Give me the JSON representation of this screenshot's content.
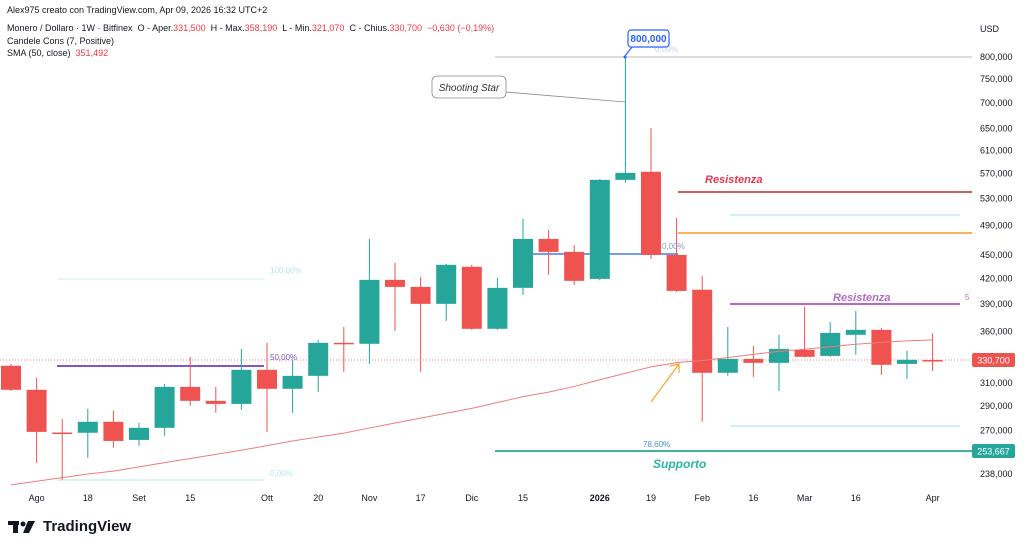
{
  "header": {
    "credit": "Alex975 creato con TradingView.com, Apr 09, 2026 16:32 UTC+2",
    "symbol": "Monero / Dollaro · 1W · Bitfinex",
    "open_label": "O - Aper.",
    "open": "331,500",
    "high_label": "H - Max.",
    "high": "358,190",
    "low_label": "L - Min.",
    "low": "321,070",
    "close_label": "C - Chius.",
    "close": "330,700",
    "change": "−0,630 (−0,19%)",
    "indicator1": "Candele Cons (7, Positive)",
    "indicator2": "SMA (50, close)",
    "indicator2_value": "351,492"
  },
  "logo": {
    "text": "TradingView",
    "icon": "tradingview-logo-icon"
  },
  "colors": {
    "up": "#26a69a",
    "down": "#ef5350",
    "sma": "#f06b6b",
    "accent": "#2962ff"
  },
  "chart_data": {
    "type": "candlestick",
    "currency": "USD",
    "y_scale": "log",
    "ylim": [
      238,
      800
    ],
    "y_ticks": [
      "800,000",
      "750,000",
      "700,000",
      "650,000",
      "610,000",
      "570,000",
      "530,000",
      "490,000",
      "450,000",
      "420,000",
      "390,000",
      "360,000",
      "310,000",
      "290,000",
      "270,000",
      "238,000"
    ],
    "y_tick_values": [
      800,
      750,
      700,
      650,
      610,
      570,
      530,
      490,
      450,
      420,
      390,
      360,
      310,
      290,
      270,
      238
    ],
    "x_ticks": [
      {
        "label": "Ago",
        "candle": 2
      },
      {
        "label": "18",
        "candle": 4
      },
      {
        "label": "Set",
        "candle": 6
      },
      {
        "label": "15",
        "candle": 8
      },
      {
        "label": "Ott",
        "candle": 11
      },
      {
        "label": "20",
        "candle": 13
      },
      {
        "label": "Nov",
        "candle": 15
      },
      {
        "label": "17",
        "candle": 17
      },
      {
        "label": "Dic",
        "candle": 19
      },
      {
        "label": "15",
        "candle": 21
      },
      {
        "label": "2026",
        "candle": 24,
        "bold": true
      },
      {
        "label": "19",
        "candle": 26
      },
      {
        "label": "Feb",
        "candle": 28
      },
      {
        "label": "16",
        "candle": 30
      },
      {
        "label": "Mar",
        "candle": 32
      },
      {
        "label": "16",
        "candle": 34
      },
      {
        "label": "Apr",
        "candle": 37
      }
    ],
    "candles": [
      [
        326,
        327.8,
        303,
        304
      ],
      [
        304,
        314.8,
        245.8,
        269
      ],
      [
        268.5,
        279.4,
        234,
        268
      ],
      [
        268.3,
        287.6,
        249.5,
        277
      ],
      [
        277,
        286,
        256.8,
        262
      ],
      [
        262.8,
        276.1,
        258.3,
        272.2
      ],
      [
        272.2,
        309.3,
        265.9,
        306.6
      ],
      [
        306.6,
        334.6,
        290.1,
        294.4
      ],
      [
        294.4,
        306.6,
        284.3,
        291.8
      ],
      [
        291.8,
        342.4,
        286.8,
        322.2
      ],
      [
        322.2,
        348.5,
        269,
        304.9
      ],
      [
        304.9,
        331.7,
        284.3,
        316.6
      ],
      [
        316.6,
        351.5,
        302.2,
        348.5
      ],
      [
        348.5,
        365,
        320.3,
        347.5
      ],
      [
        347.5,
        471.4,
        327.8,
        418.5
      ],
      [
        418.5,
        439.7,
        360.8,
        410
      ],
      [
        410,
        422.2,
        320.3,
        390.3
      ],
      [
        390.3,
        438.5,
        371.5,
        437.2
      ],
      [
        434.7,
        437.2,
        361.9,
        363
      ],
      [
        363,
        421,
        361.9,
        408.9
      ],
      [
        408.9,
        499.7,
        400.7,
        471.4
      ],
      [
        471.4,
        484,
        424.6,
        454
      ],
      [
        454,
        463.3,
        412.4,
        417.3
      ],
      [
        419.7,
        561,
        418,
        559.7
      ],
      [
        559.7,
        800,
        554.9,
        571.2
      ],
      [
        573,
        651,
        444.8,
        450
      ],
      [
        450,
        501.2,
        404,
        405.3
      ],
      [
        406.7,
        423.4,
        277,
        319.4
      ],
      [
        319.4,
        365,
        316.6,
        332.6
      ],
      [
        332.6,
        345.5,
        315.7,
        328.8
      ],
      [
        328.8,
        356.7,
        303,
        342.4
      ],
      [
        341.4,
        386.9,
        334,
        334.6
      ],
      [
        335.5,
        370.4,
        334.6,
        358.7
      ],
      [
        356.7,
        382.5,
        336.5,
        361.9
      ],
      [
        361.9,
        364,
        317.5,
        326.9
      ],
      [
        327.8,
        340.5,
        313.8,
        331.7
      ],
      [
        331.5,
        358.19,
        321.07,
        330.7
      ]
    ],
    "candle_fields": [
      "open",
      "high",
      "low",
      "close"
    ],
    "sma": [
      230.6,
      233,
      235.5,
      238,
      240,
      243,
      246,
      249,
      252,
      255,
      258.5,
      262,
      265,
      268,
      272,
      276,
      280,
      284,
      288,
      293,
      298,
      302,
      307,
      313,
      319,
      325,
      329,
      331,
      334,
      337,
      340,
      342,
      344.5,
      347,
      349,
      350.5,
      351.5
    ],
    "last_price_label": "330,700",
    "support_price_label": "253,667",
    "annotations": {
      "peak_callout": "800,000",
      "shooting_star": "Shooting Star",
      "resistance_1": "Resistenza",
      "resistance_2": "Resistenza",
      "support": "Supporto",
      "fib_0_top": "0,00%",
      "fib_0_mid": "0,00%",
      "fib_786": "78,60%",
      "fib_100_left": "100,00%",
      "fib_50_left": "50,00%",
      "fib_0_left": "0,00%",
      "edge_label": "5"
    }
  }
}
